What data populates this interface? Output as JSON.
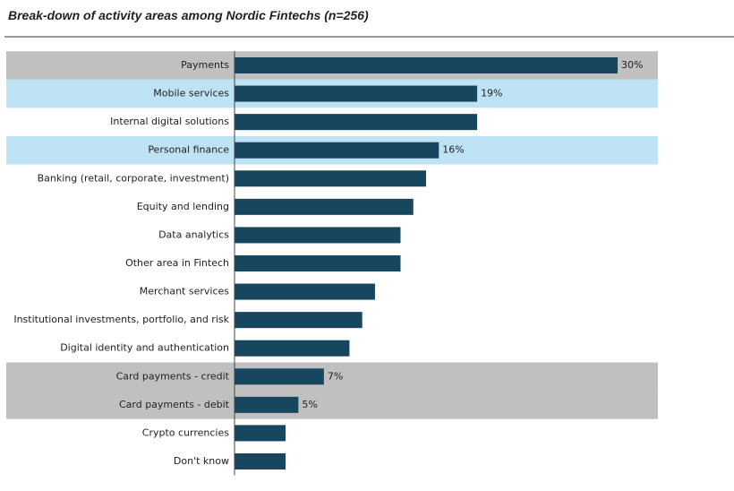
{
  "chart_data": {
    "type": "bar",
    "orientation": "horizontal",
    "title": "Break-down of activity areas among Nordic Fintechs (n=256)",
    "categories": [
      "Payments",
      "Mobile services",
      "Internal digital solutions",
      "Personal finance",
      "Banking (retail, corporate, investment)",
      "Equity and lending",
      "Data analytics",
      "Other area in Fintech",
      "Merchant services",
      "Institutional investments, portfolio, and risk",
      "Digital identity and authentication",
      "Card payments - credit",
      "Card payments - debit",
      "Crypto currencies",
      "Don't know"
    ],
    "values": [
      30,
      19,
      19,
      16,
      15,
      14,
      13,
      13,
      11,
      10,
      9,
      7,
      5,
      4,
      4
    ],
    "value_labels": [
      "30%",
      "19%",
      null,
      "16%",
      null,
      null,
      null,
      null,
      null,
      null,
      null,
      "7%",
      "5%",
      null,
      null
    ],
    "color": "#17475f",
    "band_colors": [
      "#c0c0c0",
      "#bde3f5",
      null,
      "#bde3f5",
      null,
      null,
      null,
      null,
      null,
      null,
      null,
      "#c0c0c0",
      "#c0c0c0",
      null,
      null
    ],
    "xlim": [
      0,
      30
    ]
  }
}
